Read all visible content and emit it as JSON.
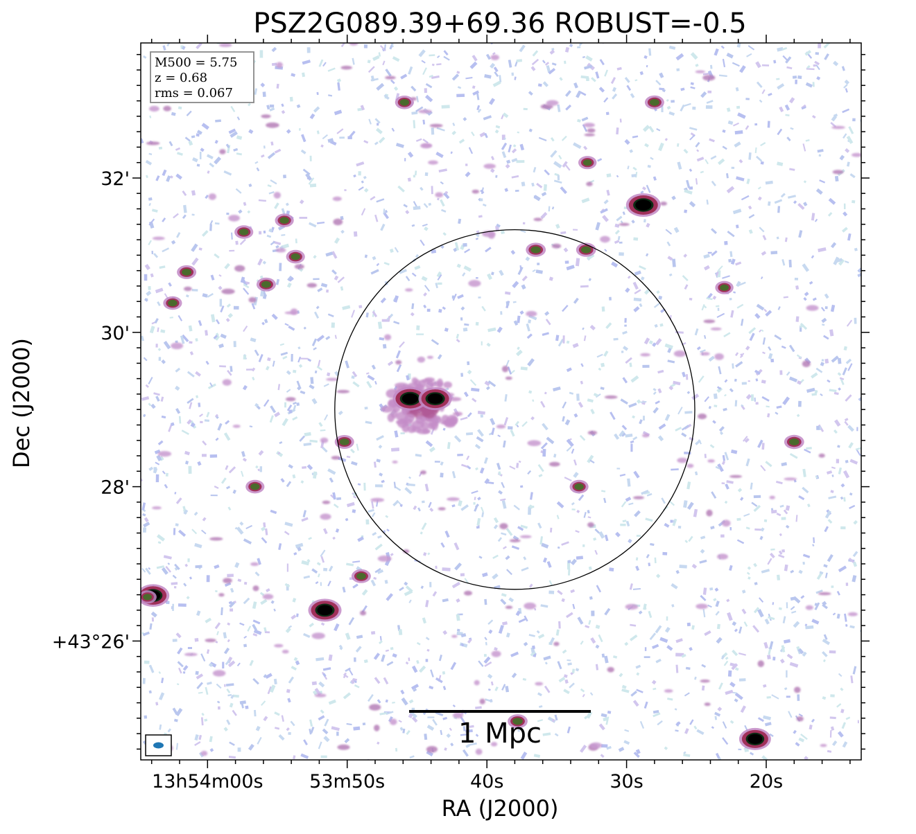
{
  "chart_data": {
    "type": "heatmap",
    "title": "PSZ2G089.39+69.36 ROBUST=-0.5",
    "xlabel": "RA (J2000)",
    "ylabel": "Dec (J2000)",
    "x_ticks": [
      {
        "label": "13h54m00s",
        "ra_s": 0
      },
      {
        "label": "53m50s",
        "ra_s": -10
      },
      {
        "label": "40s",
        "ra_s": -20
      },
      {
        "label": "30s",
        "ra_s": -30
      },
      {
        "label": "20s",
        "ra_s": -40
      }
    ],
    "y_ticks": [
      {
        "label": "32'",
        "dec_arcmin": 32
      },
      {
        "label": "30'",
        "dec_arcmin": 30
      },
      {
        "label": "28'",
        "dec_arcmin": 28
      },
      {
        "label": "+43°26'",
        "dec_arcmin": 26
      }
    ],
    "xlim_s": [
      4.78,
      -46.8
    ],
    "ylim_arcmin": [
      24.46,
      33.75
    ],
    "info_box": [
      "M500 = 5.75",
      "z = 0.68",
      "rms = 0.067"
    ],
    "scalebar_label": "1 Mpc",
    "circle": {
      "ra_s": -22.0,
      "dec_arcmin": 29.0,
      "radius_arcmin": 2.33
    },
    "sources": [
      {
        "ra_s": -14.5,
        "dec_arcmin": 29.14,
        "peak": 1.0
      },
      {
        "ra_s": -16.3,
        "dec_arcmin": 29.14,
        "peak": 0.9
      },
      {
        "ra_s": -31.2,
        "dec_arcmin": 31.65,
        "peak": 1.0
      },
      {
        "ra_s": 3.9,
        "dec_arcmin": 26.59,
        "peak": 0.85
      },
      {
        "ra_s": -8.4,
        "dec_arcmin": 26.4,
        "peak": 0.9
      },
      {
        "ra_s": -39.2,
        "dec_arcmin": 24.73,
        "peak": 0.8
      },
      {
        "ra_s": -23.5,
        "dec_arcmin": 31.07,
        "peak": 0.55
      },
      {
        "ra_s": -27.1,
        "dec_arcmin": 31.07,
        "peak": 0.55
      },
      {
        "ra_s": 1.5,
        "dec_arcmin": 30.78,
        "peak": 0.5
      },
      {
        "ra_s": -4.2,
        "dec_arcmin": 30.62,
        "peak": 0.5
      },
      {
        "ra_s": -5.5,
        "dec_arcmin": 31.45,
        "peak": 0.45
      },
      {
        "ra_s": -6.3,
        "dec_arcmin": 30.98,
        "peak": 0.45
      },
      {
        "ra_s": -2.6,
        "dec_arcmin": 31.3,
        "peak": 0.45
      },
      {
        "ra_s": 2.5,
        "dec_arcmin": 30.38,
        "peak": 0.45
      },
      {
        "ra_s": -42.0,
        "dec_arcmin": 28.58,
        "peak": 0.55
      },
      {
        "ra_s": -9.8,
        "dec_arcmin": 28.58,
        "peak": 0.5
      },
      {
        "ra_s": -26.6,
        "dec_arcmin": 28.0,
        "peak": 0.45
      },
      {
        "ra_s": -11.0,
        "dec_arcmin": 26.84,
        "peak": 0.5
      },
      {
        "ra_s": -22.2,
        "dec_arcmin": 24.96,
        "peak": 0.55
      },
      {
        "ra_s": -32.0,
        "dec_arcmin": 32.98,
        "peak": 0.5
      },
      {
        "ra_s": -14.1,
        "dec_arcmin": 32.98,
        "peak": 0.45
      },
      {
        "ra_s": -27.2,
        "dec_arcmin": 32.2,
        "peak": 0.4
      },
      {
        "ra_s": -37.0,
        "dec_arcmin": 30.58,
        "peak": 0.4
      },
      {
        "ra_s": -3.4,
        "dec_arcmin": 28.0,
        "peak": 0.45
      },
      {
        "ra_s": 4.3,
        "dec_arcmin": 26.57,
        "peak": 0.4
      }
    ]
  }
}
